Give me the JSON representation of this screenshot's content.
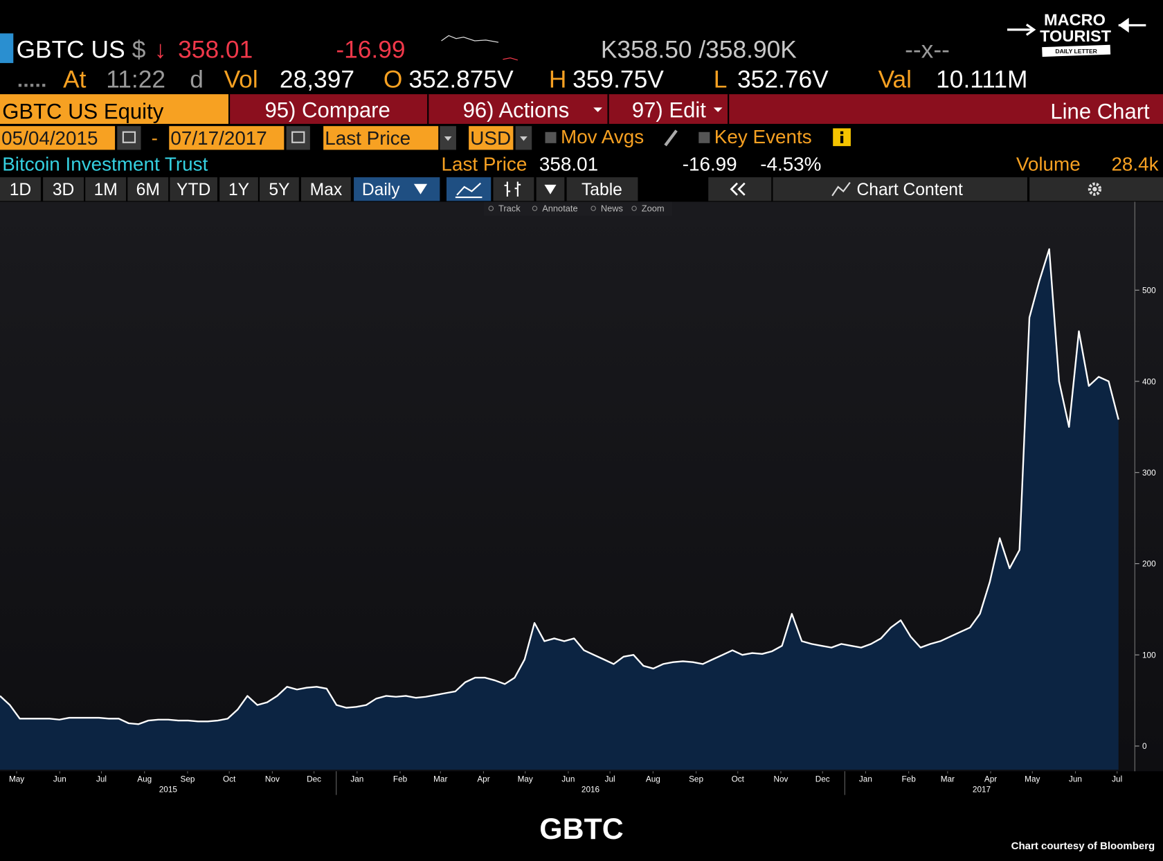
{
  "header": {
    "ticker": "GBTC US",
    "currency": "$",
    "direction": "↓",
    "price": "358.01",
    "change": "-16.99",
    "bid_ask": "K358.50 /358.90K",
    "spread": "--x--",
    "time_label": "At",
    "time": "11:22",
    "time_flag": "d",
    "volume_label": "Vol",
    "volume": "28,397",
    "open_label": "O",
    "open": "352.875V",
    "high_label": "H",
    "high": "359.75V",
    "low_label": "L",
    "low": "352.76V",
    "value_label": "Val",
    "value": "10.111M"
  },
  "toolbar": {
    "security": "GBTC US Equity",
    "compare": "95) Compare",
    "actions": "96) Actions",
    "edit": "97) Edit",
    "view": "Line Chart"
  },
  "settings": {
    "date_separator": "-",
    "field": "Last Price",
    "currency": "USD",
    "moving_averages": "Mov Avgs",
    "key_events": "Key Events"
  },
  "info": {
    "name": "Bitcoin Investment Trust",
    "field": "Last Price",
    "price": "358.01",
    "change": "-16.99",
    "change_pct": "-4.53%",
    "volume_label": "Volume",
    "volume": "28.4k"
  },
  "tabs": [
    "1D",
    "3D",
    "1M",
    "6M",
    "YTD",
    "1Y",
    "5Y",
    "Max"
  ],
  "frequency": "Daily",
  "table": "Table",
  "chart_content": "Chart Content",
  "tools": [
    "Track",
    "Annotate",
    "News",
    "Zoom"
  ],
  "logo": {
    "line1": "MACRO",
    "line2": "TOURIST",
    "tagline": "DAILY LETTER"
  },
  "chart_data": {
    "type": "area",
    "title": "GBTC",
    "source": "Chart courtesy of Bloomberg",
    "xlim": [
      "05/04/2015",
      "07/17/2017"
    ],
    "values": [
      55,
      45,
      30,
      30,
      30,
      30,
      29,
      31,
      31,
      31,
      31,
      30,
      30,
      25,
      24,
      28,
      29,
      29,
      28,
      28,
      27,
      27,
      28,
      30,
      40,
      55,
      45,
      48,
      55,
      65,
      62,
      64,
      65,
      63,
      45,
      42,
      43,
      45,
      52,
      55,
      54,
      55,
      53,
      54,
      56,
      58,
      60,
      70,
      75,
      75,
      72,
      68,
      75,
      95,
      135,
      115,
      118,
      115,
      118,
      105,
      100,
      95,
      90,
      98,
      100,
      88,
      85,
      90,
      92,
      93,
      92,
      90,
      95,
      100,
      105,
      100,
      102,
      101,
      104,
      110,
      145,
      115,
      112,
      110,
      108,
      112,
      110,
      108,
      112,
      118,
      130,
      138,
      120,
      108,
      112,
      115,
      120,
      125,
      130,
      145,
      180,
      228,
      195,
      215,
      470,
      510,
      545,
      400,
      350,
      455,
      395,
      405,
      400,
      358.01
    ],
    "color": "#ffffff",
    "fill": "#0c2442",
    "ylim": [
      -26,
      597
    ],
    "yticks": [
      0,
      100,
      200,
      300,
      400,
      500
    ],
    "xticks": [
      {
        "value": "2015-05",
        "label": "May"
      },
      {
        "value": "2015-06",
        "label": "Jun"
      },
      {
        "value": "2015-07",
        "label": "Jul"
      },
      {
        "value": "2015-08",
        "label": "Aug"
      },
      {
        "value": "2015-09",
        "label": "Sep"
      },
      {
        "value": "2015-10",
        "label": "Oct"
      },
      {
        "value": "2015-11",
        "label": "Nov"
      },
      {
        "value": "2015-12",
        "label": "Dec"
      },
      {
        "value": "2016-01",
        "label": "Jan"
      },
      {
        "value": "2016-02",
        "label": "Feb"
      },
      {
        "value": "2016-03",
        "label": "Mar"
      },
      {
        "value": "2016-04",
        "label": "Apr"
      },
      {
        "value": "2016-05",
        "label": "May"
      },
      {
        "value": "2016-06",
        "label": "Jun"
      },
      {
        "value": "2016-07",
        "label": "Jul"
      },
      {
        "value": "2016-08",
        "label": "Aug"
      },
      {
        "value": "2016-09",
        "label": "Sep"
      },
      {
        "value": "2016-10",
        "label": "Oct"
      },
      {
        "value": "2016-11",
        "label": "Nov"
      },
      {
        "value": "2016-12",
        "label": "Dec"
      },
      {
        "value": "2017-01",
        "label": "Jan"
      },
      {
        "value": "2017-02",
        "label": "Feb"
      },
      {
        "value": "2017-03",
        "label": "Mar"
      },
      {
        "value": "2017-04",
        "label": "Apr"
      },
      {
        "value": "2017-05",
        "label": "May"
      },
      {
        "value": "2017-06",
        "label": "Jun"
      },
      {
        "value": "2017-07",
        "label": "Jul"
      }
    ],
    "years": [
      2015,
      2016,
      2017
    ]
  }
}
